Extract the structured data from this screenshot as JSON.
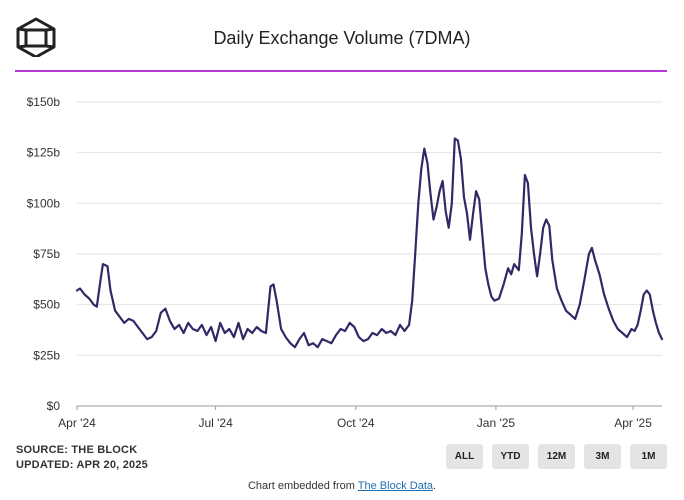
{
  "header": {
    "title": "Daily Exchange Volume (7DMA)"
  },
  "colors": {
    "line": "#2f2a66",
    "accent_rule": "#b13ad6",
    "grid": "#e3e3e3",
    "button_bg": "#e4e4e4"
  },
  "source": {
    "line1": "SOURCE: THE BLOCK",
    "line2": "UPDATED: APR 20, 2025"
  },
  "range_buttons": [
    "ALL",
    "YTD",
    "12M",
    "3M",
    "1M"
  ],
  "footer": {
    "prefix": "Chart embedded from ",
    "link": "The Block Data",
    "suffix": "."
  },
  "chart_data": {
    "type": "line",
    "title": "Daily Exchange Volume (7DMA)",
    "xlabel": "",
    "ylabel": "",
    "ylim": [
      0,
      150
    ],
    "yticks": [
      0,
      25,
      50,
      75,
      100,
      125,
      150
    ],
    "ytick_labels": [
      "$0",
      "$25b",
      "$50b",
      "$75b",
      "$100b",
      "$125b",
      "$150b"
    ],
    "xticks": [
      {
        "date": "2024-04-01",
        "label": "Apr '24"
      },
      {
        "date": "2024-07-01",
        "label": "Jul '24"
      },
      {
        "date": "2024-10-01",
        "label": "Oct '24"
      },
      {
        "date": "2025-01-01",
        "label": "Jan '25"
      },
      {
        "date": "2025-04-01",
        "label": "Apr '25"
      }
    ],
    "x_range": [
      "2024-04-01",
      "2025-04-20"
    ],
    "grid": true,
    "series": [
      {
        "values": [
          [
            "2024-04-01",
            57
          ],
          [
            "2024-04-03",
            58
          ],
          [
            "2024-04-06",
            55
          ],
          [
            "2024-04-09",
            53
          ],
          [
            "2024-04-12",
            50
          ],
          [
            "2024-04-14",
            49
          ],
          [
            "2024-04-16",
            60
          ],
          [
            "2024-04-18",
            70
          ],
          [
            "2024-04-21",
            69
          ],
          [
            "2024-04-23",
            57
          ],
          [
            "2024-04-26",
            47
          ],
          [
            "2024-04-29",
            44
          ],
          [
            "2024-05-02",
            41
          ],
          [
            "2024-05-05",
            43
          ],
          [
            "2024-05-08",
            42
          ],
          [
            "2024-05-11",
            39
          ],
          [
            "2024-05-14",
            36
          ],
          [
            "2024-05-17",
            33
          ],
          [
            "2024-05-20",
            34
          ],
          [
            "2024-05-23",
            37
          ],
          [
            "2024-05-26",
            46
          ],
          [
            "2024-05-29",
            48
          ],
          [
            "2024-06-01",
            42
          ],
          [
            "2024-06-04",
            38
          ],
          [
            "2024-06-07",
            40
          ],
          [
            "2024-06-10",
            36
          ],
          [
            "2024-06-13",
            41
          ],
          [
            "2024-06-16",
            38
          ],
          [
            "2024-06-19",
            37
          ],
          [
            "2024-06-22",
            40
          ],
          [
            "2024-06-25",
            35
          ],
          [
            "2024-06-28",
            39
          ],
          [
            "2024-07-01",
            32
          ],
          [
            "2024-07-04",
            41
          ],
          [
            "2024-07-07",
            36
          ],
          [
            "2024-07-10",
            38
          ],
          [
            "2024-07-13",
            34
          ],
          [
            "2024-07-16",
            41
          ],
          [
            "2024-07-19",
            33
          ],
          [
            "2024-07-22",
            38
          ],
          [
            "2024-07-25",
            36
          ],
          [
            "2024-07-28",
            39
          ],
          [
            "2024-07-31",
            37
          ],
          [
            "2024-08-03",
            36
          ],
          [
            "2024-08-06",
            59
          ],
          [
            "2024-08-08",
            60
          ],
          [
            "2024-08-10",
            52
          ],
          [
            "2024-08-13",
            38
          ],
          [
            "2024-08-16",
            34
          ],
          [
            "2024-08-19",
            31
          ],
          [
            "2024-08-22",
            29
          ],
          [
            "2024-08-25",
            33
          ],
          [
            "2024-08-28",
            36
          ],
          [
            "2024-08-31",
            30
          ],
          [
            "2024-09-03",
            31
          ],
          [
            "2024-09-06",
            29
          ],
          [
            "2024-09-09",
            33
          ],
          [
            "2024-09-12",
            32
          ],
          [
            "2024-09-15",
            31
          ],
          [
            "2024-09-18",
            35
          ],
          [
            "2024-09-21",
            38
          ],
          [
            "2024-09-24",
            37
          ],
          [
            "2024-09-27",
            41
          ],
          [
            "2024-09-30",
            39
          ],
          [
            "2024-10-03",
            34
          ],
          [
            "2024-10-06",
            32
          ],
          [
            "2024-10-09",
            33
          ],
          [
            "2024-10-12",
            36
          ],
          [
            "2024-10-15",
            35
          ],
          [
            "2024-10-18",
            38
          ],
          [
            "2024-10-21",
            36
          ],
          [
            "2024-10-24",
            37
          ],
          [
            "2024-10-27",
            35
          ],
          [
            "2024-10-30",
            40
          ],
          [
            "2024-11-02",
            37
          ],
          [
            "2024-11-05",
            40
          ],
          [
            "2024-11-07",
            52
          ],
          [
            "2024-11-09",
            75
          ],
          [
            "2024-11-11",
            100
          ],
          [
            "2024-11-13",
            117
          ],
          [
            "2024-11-15",
            127
          ],
          [
            "2024-11-17",
            120
          ],
          [
            "2024-11-19",
            105
          ],
          [
            "2024-11-21",
            92
          ],
          [
            "2024-11-23",
            98
          ],
          [
            "2024-11-25",
            106
          ],
          [
            "2024-11-27",
            111
          ],
          [
            "2024-11-29",
            96
          ],
          [
            "2024-12-01",
            88
          ],
          [
            "2024-12-03",
            100
          ],
          [
            "2024-12-05",
            132
          ],
          [
            "2024-12-07",
            131
          ],
          [
            "2024-12-09",
            122
          ],
          [
            "2024-12-11",
            103
          ],
          [
            "2024-12-13",
            95
          ],
          [
            "2024-12-15",
            82
          ],
          [
            "2024-12-17",
            95
          ],
          [
            "2024-12-19",
            106
          ],
          [
            "2024-12-21",
            102
          ],
          [
            "2024-12-23",
            85
          ],
          [
            "2024-12-25",
            68
          ],
          [
            "2024-12-27",
            60
          ],
          [
            "2024-12-29",
            54
          ],
          [
            "2024-12-31",
            52
          ],
          [
            "2025-01-03",
            53
          ],
          [
            "2025-01-06",
            60
          ],
          [
            "2025-01-09",
            68
          ],
          [
            "2025-01-11",
            65
          ],
          [
            "2025-01-13",
            70
          ],
          [
            "2025-01-16",
            67
          ],
          [
            "2025-01-18",
            85
          ],
          [
            "2025-01-20",
            114
          ],
          [
            "2025-01-22",
            110
          ],
          [
            "2025-01-24",
            88
          ],
          [
            "2025-01-26",
            75
          ],
          [
            "2025-01-28",
            64
          ],
          [
            "2025-01-30",
            75
          ],
          [
            "2025-02-01",
            88
          ],
          [
            "2025-02-03",
            92
          ],
          [
            "2025-02-05",
            89
          ],
          [
            "2025-02-07",
            72
          ],
          [
            "2025-02-10",
            58
          ],
          [
            "2025-02-13",
            52
          ],
          [
            "2025-02-16",
            47
          ],
          [
            "2025-02-19",
            45
          ],
          [
            "2025-02-22",
            43
          ],
          [
            "2025-02-25",
            50
          ],
          [
            "2025-02-28",
            62
          ],
          [
            "2025-03-03",
            75
          ],
          [
            "2025-03-05",
            78
          ],
          [
            "2025-03-07",
            72
          ],
          [
            "2025-03-10",
            65
          ],
          [
            "2025-03-13",
            55
          ],
          [
            "2025-03-16",
            48
          ],
          [
            "2025-03-19",
            42
          ],
          [
            "2025-03-22",
            38
          ],
          [
            "2025-03-25",
            36
          ],
          [
            "2025-03-28",
            34
          ],
          [
            "2025-03-31",
            38
          ],
          [
            "2025-04-02",
            37
          ],
          [
            "2025-04-04",
            40
          ],
          [
            "2025-04-06",
            47
          ],
          [
            "2025-04-08",
            55
          ],
          [
            "2025-04-10",
            57
          ],
          [
            "2025-04-12",
            55
          ],
          [
            "2025-04-14",
            47
          ],
          [
            "2025-04-16",
            41
          ],
          [
            "2025-04-18",
            36
          ],
          [
            "2025-04-20",
            33
          ]
        ]
      }
    ]
  }
}
